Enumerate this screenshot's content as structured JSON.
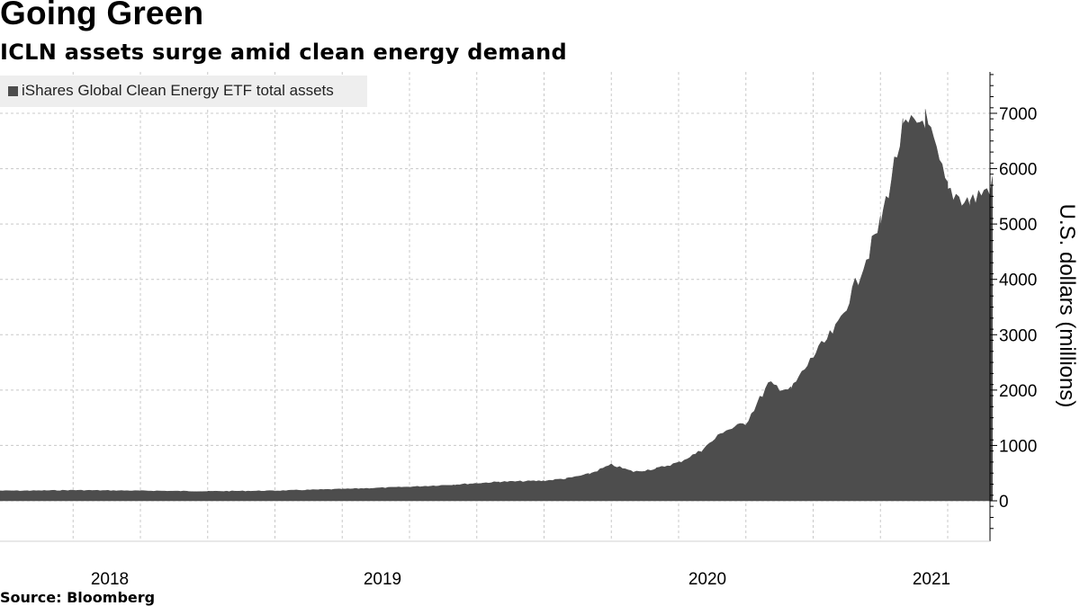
{
  "header": {
    "title": "Going Green",
    "subtitle": "ICLN assets surge amid clean energy demand"
  },
  "footer": {
    "source": "Source: Bloomberg"
  },
  "chart_data": {
    "type": "area",
    "title": "Going Green",
    "subtitle": "ICLN assets surge amid clean energy demand",
    "xlabel": "",
    "ylabel": "U.S. dollars (millions)",
    "x_ticks": [
      "2018",
      "2019",
      "2020",
      "2021"
    ],
    "y_ticks": [
      0,
      1000,
      2000,
      3000,
      4000,
      5000,
      6000,
      7000
    ],
    "ylim": [
      -700,
      7800
    ],
    "xlim": [
      "2017-06",
      "2021-03"
    ],
    "grid": true,
    "legend_position": "top-left",
    "series": [
      {
        "name": "iShares Global Clean Energy ETF total assets",
        "color": "#4d4d4d",
        "x": [
          "2017-08",
          "2017-10",
          "2018-01",
          "2018-04",
          "2018-07",
          "2018-10",
          "2019-01",
          "2019-03",
          "2019-05",
          "2019-07",
          "2019-08",
          "2019-09",
          "2019-10",
          "2019-11",
          "2019-12",
          "2020-01",
          "2020-02",
          "2020-03",
          "2020-04",
          "2020-05",
          "2020-06",
          "2020-07",
          "2020-08",
          "2020-09",
          "2020-10",
          "2020-11",
          "2020-12",
          "2021-01",
          "2021-02",
          "2021-03"
        ],
        "values": [
          180,
          190,
          180,
          170,
          180,
          210,
          250,
          290,
          340,
          360,
          400,
          480,
          650,
          520,
          580,
          690,
          900,
          1250,
          1400,
          2100,
          2000,
          2600,
          3100,
          4000,
          5000,
          6700,
          6900,
          5600,
          5400,
          5700
        ]
      }
    ]
  }
}
